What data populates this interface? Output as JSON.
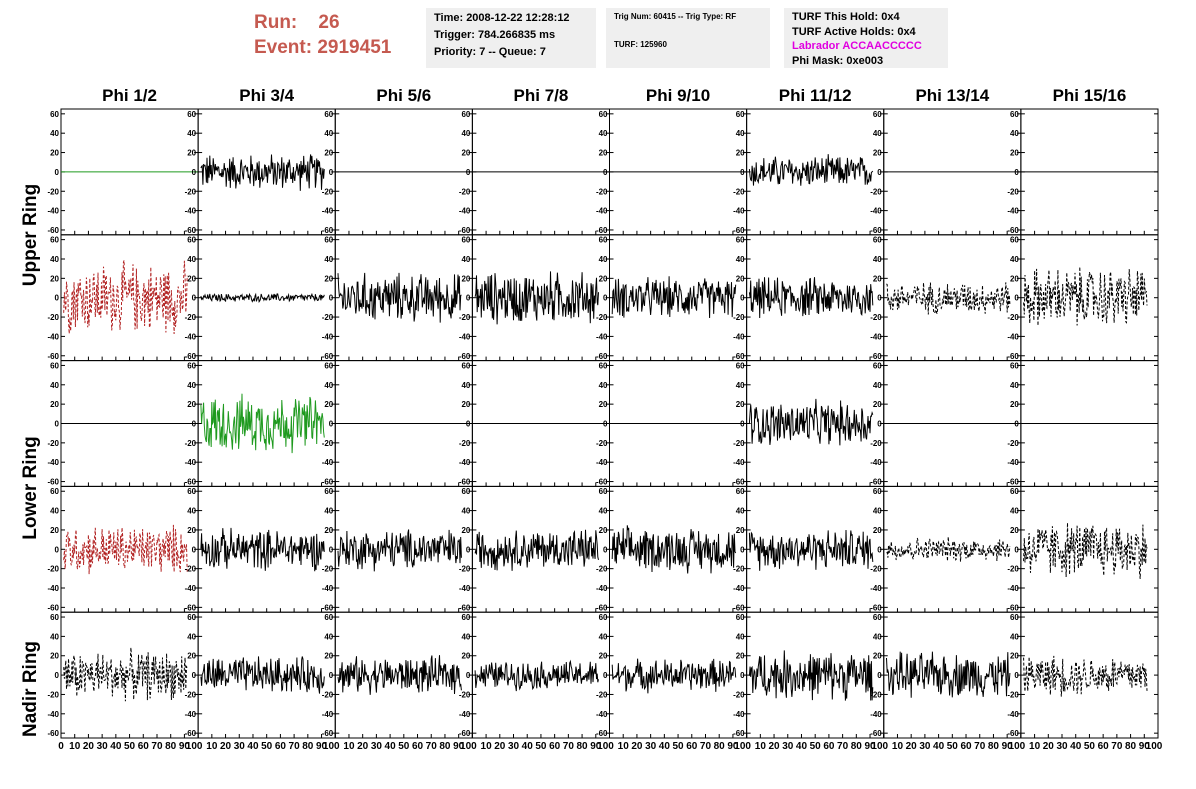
{
  "header": {
    "run_label": "Run:",
    "run_value": "26",
    "event_label": "Event:",
    "event_value": "2919451"
  },
  "info1": {
    "time": "Time: 2008-12-22 12:28:12",
    "trigger": "Trigger: 784.266835 ms",
    "priority": "Priority: 7 -- Queue: 7"
  },
  "info2": {
    "trig": "Trig Num: 60415 -- Trig Type: RF",
    "turf": "TURF: 125960"
  },
  "info3": {
    "hold": "TURF This Hold: 0x4",
    "active": "TURF Active Holds: 0x4",
    "labrador": "Labrador ACCAACCCCC",
    "phimask": "Phi Mask: 0xe003"
  },
  "columns": [
    "Phi 1/2",
    "Phi 3/4",
    "Phi 5/6",
    "Phi 7/8",
    "Phi 9/10",
    "Phi 11/12",
    "Phi 13/14",
    "Phi 15/16"
  ],
  "row_labels": {
    "upper": "Upper Ring",
    "lower": "Lower Ring",
    "nadir": "Nadir Ring"
  },
  "y_ticks": [
    "60",
    "40",
    "20",
    "0",
    "-20",
    "-40",
    "-60"
  ],
  "x_tick_labels_first": [
    "0",
    "10",
    "20",
    "30",
    "40",
    "50",
    "60",
    "70",
    "80",
    "90",
    "100"
  ],
  "x_tick_labels": [
    "10",
    "20",
    "30",
    "40",
    "50",
    "60",
    "70",
    "80",
    "90",
    "100"
  ],
  "colors": {
    "header_red": "#c55a50",
    "labrador_magenta": "#e000e0",
    "info_bg": "#efefef",
    "wave_black": "#000000",
    "wave_green": "#1f9a1f",
    "wave_red": "#b22222"
  },
  "chart_data": {
    "type": "line",
    "xlim": [
      0,
      100
    ],
    "ylim": [
      -65,
      65
    ],
    "rows": 5,
    "cols": 8,
    "panels": [
      [
        {
          "style": "flat-green",
          "amp": 0
        },
        {
          "style": "solid",
          "amp": 18
        },
        {
          "style": "flat",
          "amp": 0
        },
        {
          "style": "flat",
          "amp": 0
        },
        {
          "style": "flat",
          "amp": 0
        },
        {
          "style": "solid",
          "amp": 16
        },
        {
          "style": "flat",
          "amp": 0
        },
        {
          "style": "flat",
          "amp": 0
        }
      ],
      [
        {
          "style": "dashed-red",
          "amp": 35
        },
        {
          "style": "solid",
          "amp": 4
        },
        {
          "style": "solid",
          "amp": 24
        },
        {
          "style": "solid",
          "amp": 26
        },
        {
          "style": "solid",
          "amp": 20
        },
        {
          "style": "solid",
          "amp": 20
        },
        {
          "style": "dashed",
          "amp": 16
        },
        {
          "style": "dashed",
          "amp": 30
        }
      ],
      [
        {
          "style": "flat",
          "amp": 0
        },
        {
          "style": "solid-green",
          "amp": 28
        },
        {
          "style": "flat",
          "amp": 0
        },
        {
          "style": "flat",
          "amp": 0
        },
        {
          "style": "flat",
          "amp": 0
        },
        {
          "style": "solid",
          "amp": 22
        },
        {
          "style": "flat",
          "amp": 0
        },
        {
          "style": "flat",
          "amp": 0
        }
      ],
      [
        {
          "style": "dashed-red",
          "amp": 24
        },
        {
          "style": "solid",
          "amp": 20
        },
        {
          "style": "solid",
          "amp": 20
        },
        {
          "style": "solid",
          "amp": 20
        },
        {
          "style": "solid",
          "amp": 22
        },
        {
          "style": "solid",
          "amp": 20
        },
        {
          "style": "dashed",
          "amp": 12
        },
        {
          "style": "dashed",
          "amp": 28
        }
      ],
      [
        {
          "style": "dashed",
          "amp": 24
        },
        {
          "style": "solid",
          "amp": 18
        },
        {
          "style": "solid",
          "amp": 18
        },
        {
          "style": "solid",
          "amp": 14
        },
        {
          "style": "solid",
          "amp": 16
        },
        {
          "style": "solid",
          "amp": 24
        },
        {
          "style": "solid",
          "amp": 22
        },
        {
          "style": "dashed",
          "amp": 20
        }
      ]
    ]
  }
}
